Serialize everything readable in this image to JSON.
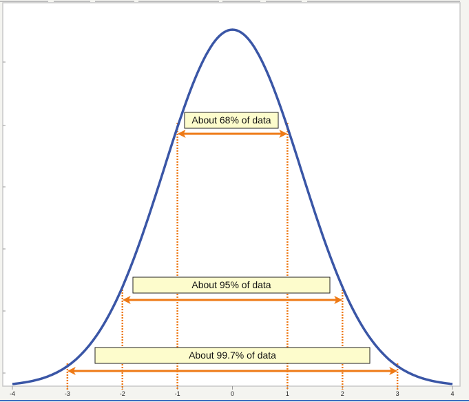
{
  "chart_data": {
    "type": "line",
    "title": "",
    "xlabel": "",
    "ylabel": "",
    "xlim": [
      -4,
      4
    ],
    "x_ticks": [
      "-4",
      "-3",
      "-2",
      "-1",
      "0",
      "1",
      "2",
      "3",
      "4"
    ],
    "y_tick_labels_shown": false,
    "grid": false,
    "series": [
      {
        "distribution": "normal",
        "mean": 0,
        "sd": 1,
        "color": "#3a56a6"
      }
    ],
    "annotations": [
      {
        "text": "About 68% of data",
        "from": -1,
        "to": 1
      },
      {
        "text": "About 95% of data",
        "from": -2,
        "to": 2
      },
      {
        "text": "About 99.7% of data",
        "from": -3,
        "to": 3
      }
    ],
    "annotation_color": "#ee7a16",
    "label_box_color": "#fdfccc"
  }
}
